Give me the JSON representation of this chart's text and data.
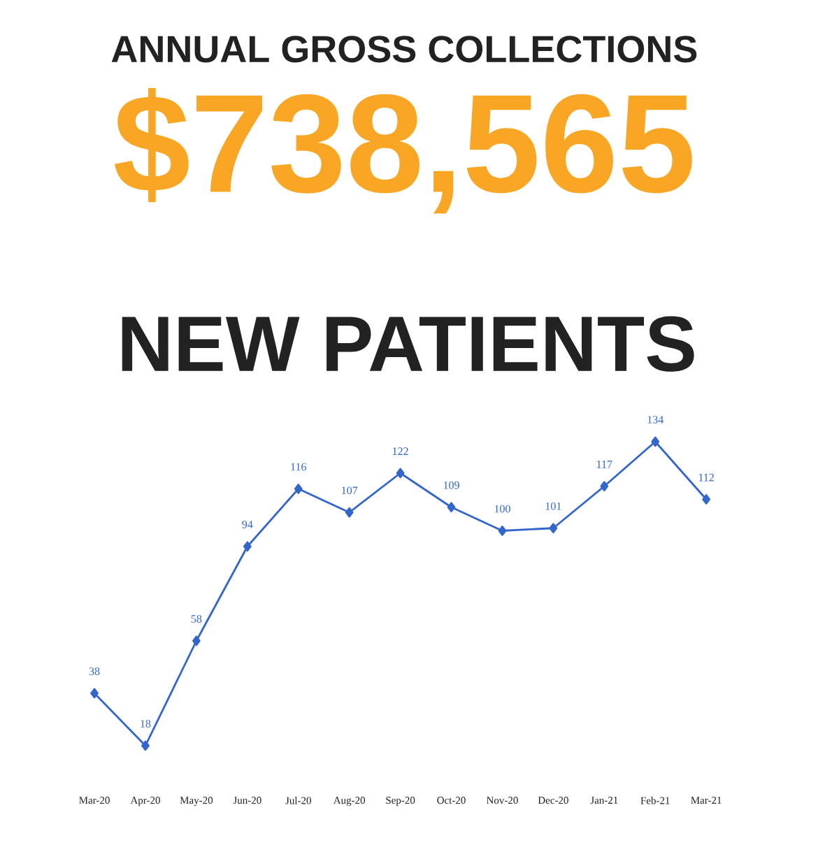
{
  "chart_data": [
    {
      "type": "other",
      "title": "ANNUAL GROSS COLLECTIONS",
      "annotations": [
        "$738,565"
      ]
    },
    {
      "type": "line",
      "title": "NEW PATIENTS",
      "categories": [
        "Mar-20",
        "Apr-20",
        "May-20",
        "Jun-20",
        "Jul-20",
        "Aug-20",
        "Sep-20",
        "Oct-20",
        "Nov-20",
        "Dec-20",
        "Jan-21",
        "Feb-21",
        "Mar-21"
      ],
      "series": [
        {
          "color": "#3366cc",
          "values": [
            38,
            18,
            58,
            94,
            116,
            107,
            122,
            109,
            100,
            101,
            117,
            134,
            112
          ]
        }
      ],
      "data_labels": true,
      "marker": "diamond"
    }
  ]
}
